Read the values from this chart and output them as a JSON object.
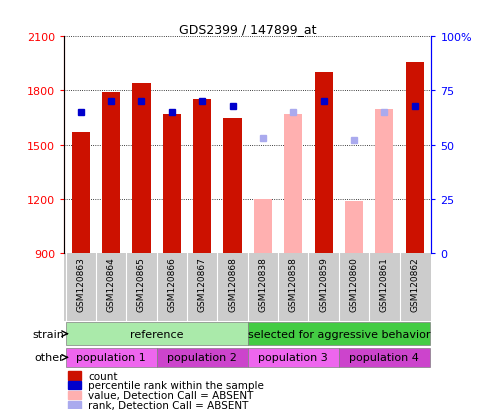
{
  "title": "GDS2399 / 147899_at",
  "samples": [
    "GSM120863",
    "GSM120864",
    "GSM120865",
    "GSM120866",
    "GSM120867",
    "GSM120868",
    "GSM120838",
    "GSM120858",
    "GSM120859",
    "GSM120860",
    "GSM120861",
    "GSM120862"
  ],
  "count_values": [
    1570,
    1790,
    1840,
    1670,
    1755,
    1645,
    null,
    null,
    1900,
    null,
    null,
    1960
  ],
  "absent_bar_values": [
    null,
    null,
    null,
    null,
    null,
    null,
    1200,
    1670,
    null,
    1190,
    1700,
    null
  ],
  "percentile_rank": [
    65,
    70,
    70,
    65,
    70,
    68,
    null,
    null,
    70,
    null,
    null,
    68
  ],
  "absent_rank": [
    null,
    null,
    null,
    null,
    null,
    null,
    53,
    null,
    null,
    52,
    null,
    null
  ],
  "absent_rank_high": [
    null,
    null,
    null,
    null,
    null,
    null,
    null,
    65,
    null,
    null,
    65,
    null
  ],
  "ymin": 900,
  "ymax": 2100,
  "yticks": [
    900,
    1200,
    1500,
    1800,
    2100
  ],
  "ytick_labels_left": [
    "900",
    "1200",
    "1500",
    "1800",
    "2100"
  ],
  "right_yticks": [
    0,
    25,
    50,
    75,
    100
  ],
  "right_ytick_labels": [
    "0",
    "25",
    "50",
    "75",
    "100%"
  ],
  "bar_color_red": "#CC1100",
  "bar_color_pink": "#FFB0B0",
  "dot_color_blue": "#0000CC",
  "dot_color_lightblue": "#AAAAEE",
  "strain_reference_color": "#AAEAAA",
  "strain_selected_color": "#44CC44",
  "other_pop1_color": "#EE66EE",
  "other_pop2_color": "#CC44CC",
  "other_pop3_color": "#EE66EE",
  "other_pop4_color": "#CC44CC",
  "tick_bg_color": "#CCCCCC",
  "plot_bg": "#FFFFFF",
  "legend_items": [
    "count",
    "percentile rank within the sample",
    "value, Detection Call = ABSENT",
    "rank, Detection Call = ABSENT"
  ],
  "legend_colors": [
    "#CC1100",
    "#0000CC",
    "#FFB0B0",
    "#AAAAEE"
  ]
}
